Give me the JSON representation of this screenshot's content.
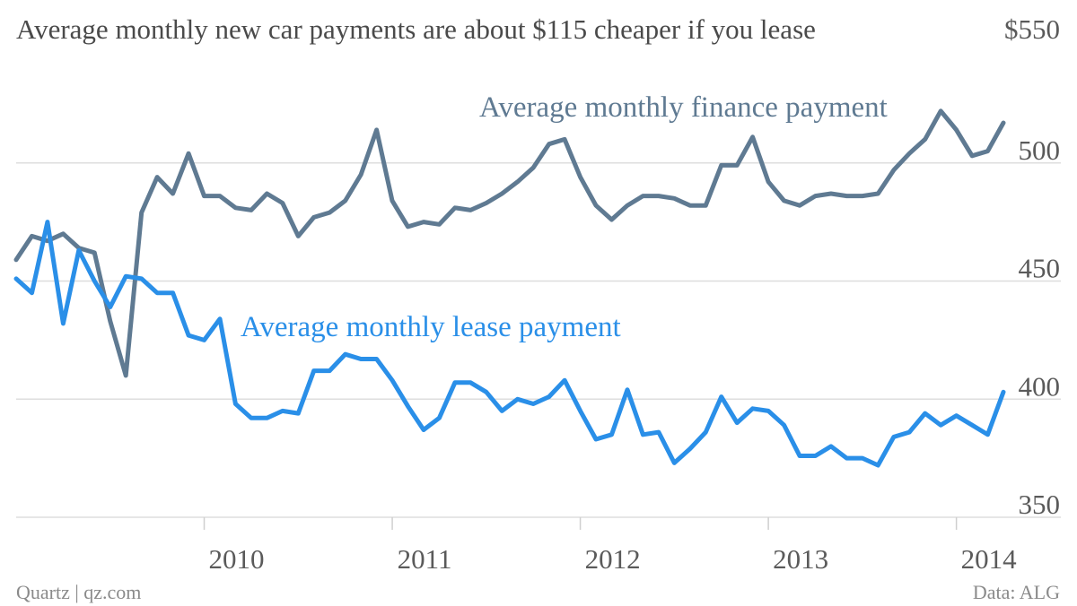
{
  "title": "Average monthly new car payments are about $115 cheaper if you lease",
  "source": "Quartz | qz.com",
  "data_credit": "Data: ALG",
  "colors": {
    "finance": "#5f7a92",
    "lease": "#2a8fe8"
  },
  "chart_data": {
    "type": "line",
    "title": "Average monthly new car payments are about $115 cheaper if you lease",
    "xlabel": "",
    "ylabel": "",
    "ylim": [
      350,
      550
    ],
    "xlim": [
      2009.0,
      2014.42
    ],
    "y_ticks": [
      {
        "value": 550,
        "label": "$550"
      },
      {
        "value": 500,
        "label": "500"
      },
      {
        "value": 450,
        "label": "450"
      },
      {
        "value": 400,
        "label": "400"
      },
      {
        "value": 350,
        "label": "350"
      }
    ],
    "x_ticks": [
      {
        "value": 2010,
        "label": "2010"
      },
      {
        "value": 2011,
        "label": "2011"
      },
      {
        "value": 2012,
        "label": "2012"
      },
      {
        "value": 2013,
        "label": "2013"
      },
      {
        "value": 2014,
        "label": "2014"
      }
    ],
    "grid": true,
    "legend": "inline labels",
    "x_start": "2009-01",
    "x_step": "1 month",
    "series": [
      {
        "name": "Average monthly finance payment",
        "color": "#5f7a92",
        "values": [
          459,
          469,
          467,
          470,
          464,
          462,
          433,
          410,
          479,
          494,
          487,
          504,
          486,
          486,
          481,
          480,
          487,
          483,
          469,
          477,
          479,
          484,
          495,
          514,
          484,
          473,
          475,
          474,
          481,
          480,
          483,
          487,
          492,
          498,
          508,
          510,
          494,
          482,
          476,
          482,
          486,
          486,
          485,
          482,
          482,
          499,
          499,
          511,
          492,
          484,
          482,
          486,
          487,
          486,
          486,
          487,
          497,
          504,
          510,
          522,
          514,
          503,
          505,
          517
        ]
      },
      {
        "name": "Average monthly lease payment",
        "color": "#2a8fe8",
        "values": [
          451,
          445,
          475,
          432,
          463,
          450,
          439,
          452,
          451,
          445,
          445,
          427,
          425,
          434,
          398,
          392,
          392,
          395,
          394,
          412,
          412,
          419,
          417,
          417,
          408,
          397,
          387,
          392,
          407,
          407,
          403,
          395,
          400,
          398,
          401,
          408,
          395,
          383,
          385,
          404,
          385,
          386,
          373,
          379,
          386,
          401,
          390,
          396,
          395,
          389,
          376,
          376,
          380,
          375,
          375,
          372,
          384,
          386,
          394,
          389,
          393,
          389,
          385,
          403
        ]
      }
    ]
  }
}
